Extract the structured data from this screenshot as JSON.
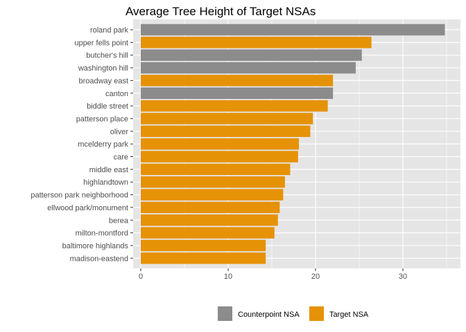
{
  "chart_data": {
    "type": "bar",
    "orientation": "horizontal",
    "title": "Average Tree Height of Target NSAs",
    "xlabel": "",
    "ylabel": "",
    "xlim": [
      0,
      35
    ],
    "xticks": [
      0,
      10,
      20,
      30
    ],
    "grid": true,
    "legend_position": "bottom",
    "categories": [
      "roland park",
      "upper fells point",
      "butcher's hill",
      "washington hill",
      "broadway east",
      "canton",
      "biddle street",
      "patterson place",
      "oliver",
      "mcelderry park",
      "care",
      "middle east",
      "highlandtown",
      "patterson park neighborhood",
      "ellwood park/monument",
      "berea",
      "milton-montford",
      "baltimore highlands",
      "madison-eastend"
    ],
    "values": [
      34.8,
      26.4,
      25.3,
      24.6,
      22.0,
      22.0,
      21.4,
      19.7,
      19.4,
      18.1,
      18.0,
      17.1,
      16.5,
      16.3,
      15.9,
      15.7,
      15.3,
      14.3,
      14.3
    ],
    "groups": [
      "Counterpoint NSA",
      "Target NSA",
      "Counterpoint NSA",
      "Counterpoint NSA",
      "Target NSA",
      "Counterpoint NSA",
      "Target NSA",
      "Target NSA",
      "Target NSA",
      "Target NSA",
      "Target NSA",
      "Target NSA",
      "Target NSA",
      "Target NSA",
      "Target NSA",
      "Target NSA",
      "Target NSA",
      "Target NSA",
      "Target NSA"
    ],
    "legend": [
      {
        "name": "Counterpoint NSA",
        "color": "#8c8c8c"
      },
      {
        "name": "Target NSA",
        "color": "#e69206"
      }
    ],
    "colors": {
      "panel_background": "#e5e5e5",
      "gridline": "#ffffff"
    }
  }
}
